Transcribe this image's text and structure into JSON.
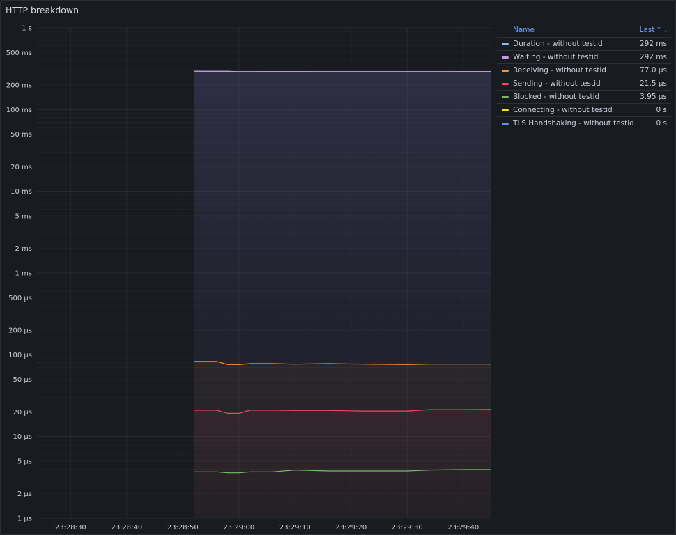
{
  "panel": {
    "title": "HTTP breakdown"
  },
  "legend": {
    "name_header": "Name",
    "last_header": "Last *",
    "sort_icon": "chevron-down-icon"
  },
  "chart_data": {
    "type": "line",
    "title": "HTTP breakdown",
    "x_scale": "time",
    "y_scale": "log",
    "ylim_seconds": [
      1e-06,
      1
    ],
    "y_ticks": [
      {
        "v": 1,
        "label": "1 s"
      },
      {
        "v": 0.5,
        "label": "500 ms"
      },
      {
        "v": 0.2,
        "label": "200 ms"
      },
      {
        "v": 0.1,
        "label": "100 ms"
      },
      {
        "v": 0.05,
        "label": "50 ms"
      },
      {
        "v": 0.02,
        "label": "20 ms"
      },
      {
        "v": 0.01,
        "label": "10 ms"
      },
      {
        "v": 0.005,
        "label": "5 ms"
      },
      {
        "v": 0.002,
        "label": "2 ms"
      },
      {
        "v": 0.001,
        "label": "1 ms"
      },
      {
        "v": 0.0005,
        "label": "500 µs"
      },
      {
        "v": 0.0002,
        "label": "200 µs"
      },
      {
        "v": 0.0001,
        "label": "100 µs"
      },
      {
        "v": 5e-05,
        "label": "50 µs"
      },
      {
        "v": 2e-05,
        "label": "20 µs"
      },
      {
        "v": 1e-05,
        "label": "10 µs"
      },
      {
        "v": 5e-06,
        "label": "5 µs"
      },
      {
        "v": 2e-06,
        "label": "2 µs"
      },
      {
        "v": 1e-06,
        "label": "1 µs"
      }
    ],
    "xlim": [
      "23:28:24",
      "23:29:45"
    ],
    "x_ticks": [
      "23:28:30",
      "23:28:40",
      "23:28:50",
      "23:29:00",
      "23:29:10",
      "23:29:20",
      "23:29:30",
      "23:29:40"
    ],
    "grid": true,
    "legend_position": "right",
    "x": [
      "23:28:52",
      "23:28:56",
      "23:28:58",
      "23:29:00",
      "23:29:02",
      "23:29:06",
      "23:29:10",
      "23:29:16",
      "23:29:22",
      "23:29:30",
      "23:29:34",
      "23:29:40",
      "23:29:45"
    ],
    "series": [
      {
        "name": "Duration - without testid",
        "color": "#8ab8ff",
        "last": "292 ms",
        "values": [
          0.295,
          0.294,
          0.294,
          0.291,
          0.291,
          0.292,
          0.292,
          0.291,
          0.291,
          0.291,
          0.291,
          0.292,
          0.292
        ]
      },
      {
        "name": "Waiting - without testid",
        "color": "#ca95e5",
        "last": "292 ms",
        "values": [
          0.295,
          0.294,
          0.294,
          0.291,
          0.291,
          0.292,
          0.292,
          0.291,
          0.291,
          0.291,
          0.291,
          0.292,
          0.292
        ]
      },
      {
        "name": "Receiving - without testid",
        "color": "#ff9830",
        "last": "77.0 µs",
        "values": [
          8.3e-05,
          8.3e-05,
          7.6e-05,
          7.6e-05,
          7.8e-05,
          7.8e-05,
          7.7e-05,
          7.8e-05,
          7.7e-05,
          7.6e-05,
          7.7e-05,
          7.7e-05,
          7.7e-05
        ]
      },
      {
        "name": "Sending - without testid",
        "color": "#f2495c",
        "last": "21.5 µs",
        "values": [
          2.1e-05,
          2.1e-05,
          1.92e-05,
          1.92e-05,
          2.1e-05,
          2.1e-05,
          2.08e-05,
          2.08e-05,
          2.05e-05,
          2.05e-05,
          2.13e-05,
          2.13e-05,
          2.15e-05
        ]
      },
      {
        "name": "Blocked - without testid",
        "color": "#73bf69",
        "last": "3.95 µs",
        "values": [
          3.7e-06,
          3.7e-06,
          3.6e-06,
          3.6e-06,
          3.7e-06,
          3.7e-06,
          3.9e-06,
          3.8e-06,
          3.8e-06,
          3.8e-06,
          3.9e-06,
          3.95e-06,
          3.95e-06
        ]
      },
      {
        "name": "Connecting - without testid",
        "color": "#fade2a",
        "last": "0 s",
        "values": [
          0,
          0,
          0,
          0,
          0,
          0,
          0,
          0,
          0,
          0,
          0,
          0,
          0
        ]
      },
      {
        "name": "TLS Handshaking - without testid",
        "color": "#5794f2",
        "last": "0 s",
        "values": [
          0,
          0,
          0,
          0,
          0,
          0,
          0,
          0,
          0,
          0,
          0,
          0,
          0
        ]
      }
    ]
  }
}
